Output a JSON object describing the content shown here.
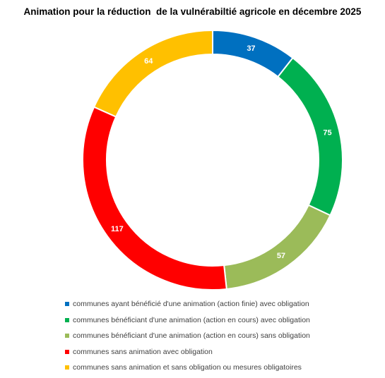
{
  "chart_data": {
    "type": "pie",
    "donut": true,
    "title": "Animation pour la réduction  de la vulnérabiltié agricole en décembre 2025",
    "legend_position": "bottom",
    "slices": [
      {
        "label": "communes ayant bénéficié d'une animation (action finie) avec obligation",
        "value": 37,
        "color": "#0070C0"
      },
      {
        "label": "communes bénéficiant d'une animation (action en cours) avec obligation",
        "value": 75,
        "color": "#00B050"
      },
      {
        "label": "communes bénéficiant d'une animation (action en cours) sans obligation",
        "value": 57,
        "color": "#9BBB59"
      },
      {
        "label": "communes sans animation avec obligation",
        "value": 117,
        "color": "#FF0000"
      },
      {
        "label": "communes sans animation et sans obligation ou mesures obligatoires",
        "value": 64,
        "color": "#FFC000"
      }
    ]
  }
}
